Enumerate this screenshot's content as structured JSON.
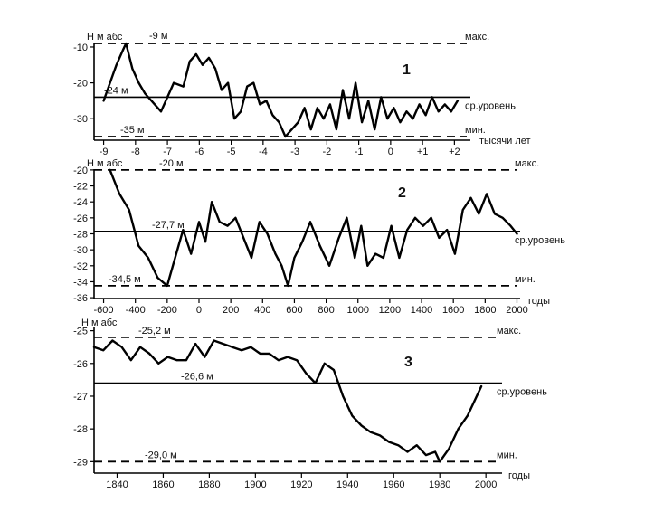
{
  "chart_data": [
    {
      "type": "line",
      "panel_number": "1",
      "ylabel": "Н м абс",
      "xlabel": "тысячи лет",
      "xlim": [
        -9.3,
        2.5
      ],
      "ylim": [
        -9,
        -36
      ],
      "yticks": [
        -10,
        -20,
        -30
      ],
      "ytick_labels": [
        "-10",
        "-20",
        "-30"
      ],
      "xticks": [
        -9,
        -8,
        -7,
        -6,
        -5,
        -4,
        -3,
        -2,
        -1,
        0,
        1,
        2
      ],
      "xtick_labels": [
        "-9",
        "-8",
        "-7",
        "-6",
        "-5",
        "-4",
        "-3",
        "-2",
        "-1",
        "0",
        "+1",
        "+2"
      ],
      "reference_lines": [
        {
          "y": -9,
          "label": "-9 м",
          "right_label": "макс.",
          "style": "dashed"
        },
        {
          "y": -24,
          "label": "-24 м",
          "right_label": "ср.уровень",
          "style": "solid"
        },
        {
          "y": -35,
          "label": "-35 м",
          "right_label": "мин.",
          "style": "dashed"
        }
      ],
      "x": [
        -9.0,
        -8.8,
        -8.6,
        -8.4,
        -8.3,
        -8.1,
        -7.9,
        -7.7,
        -7.5,
        -7.2,
        -7.0,
        -6.8,
        -6.5,
        -6.3,
        -6.1,
        -5.9,
        -5.7,
        -5.5,
        -5.3,
        -5.1,
        -4.9,
        -4.7,
        -4.5,
        -4.3,
        -4.1,
        -3.9,
        -3.7,
        -3.5,
        -3.3,
        -3.1,
        -2.9,
        -2.7,
        -2.5,
        -2.3,
        -2.1,
        -1.9,
        -1.7,
        -1.5,
        -1.3,
        -1.1,
        -0.9,
        -0.7,
        -0.5,
        -0.3,
        -0.1,
        0.1,
        0.3,
        0.5,
        0.7,
        0.9,
        1.1,
        1.3,
        1.5,
        1.7,
        1.9,
        2.1
      ],
      "y": [
        -25,
        -20,
        -15,
        -11,
        -9,
        -16,
        -20,
        -23,
        -25,
        -28,
        -24,
        -20,
        -21,
        -14,
        -12,
        -15,
        -13,
        -16,
        -22,
        -20,
        -30,
        -28,
        -21,
        -20,
        -26,
        -25,
        -29,
        -31,
        -35,
        -33,
        -31,
        -27,
        -33,
        -27,
        -30,
        -26,
        -33,
        -22,
        -30,
        -20,
        -31,
        -25,
        -33,
        -24,
        -30,
        -27,
        -31,
        -28,
        -30,
        -26,
        -29,
        -24,
        -28,
        -26,
        -28,
        -25
      ]
    },
    {
      "type": "line",
      "panel_number": "2",
      "ylabel": "Н м абс",
      "xlabel": "годы",
      "xlim": [
        -660,
        2020
      ],
      "ylim": [
        -20,
        -36
      ],
      "yticks": [
        -20,
        -22,
        -24,
        -26,
        -28,
        -30,
        -32,
        -34,
        -36
      ],
      "ytick_labels": [
        "-20",
        "-22",
        "-24",
        "-26",
        "-28",
        "-30",
        "-32",
        "-34",
        "-36"
      ],
      "xticks": [
        -600,
        -400,
        -200,
        0,
        200,
        400,
        600,
        800,
        1000,
        1200,
        1400,
        1600,
        1800,
        2000
      ],
      "xtick_labels": [
        "-600",
        "-400",
        "-200",
        "0",
        "200",
        "400",
        "600",
        "800",
        "1000",
        "1200",
        "1400",
        "1600",
        "1800",
        "2000"
      ],
      "reference_lines": [
        {
          "y": -20,
          "label": "-20 м",
          "right_label": "макс.",
          "style": "dashed"
        },
        {
          "y": -27.7,
          "label": "-27,7 м",
          "right_label": "ср.уровень",
          "style": "solid"
        },
        {
          "y": -34.5,
          "label": "-34,5 м",
          "right_label": "мин.",
          "style": "dashed"
        }
      ],
      "x": [
        -560,
        -500,
        -440,
        -380,
        -320,
        -260,
        -200,
        -150,
        -100,
        -50,
        0,
        40,
        80,
        130,
        180,
        230,
        280,
        330,
        380,
        430,
        480,
        520,
        560,
        600,
        650,
        700,
        760,
        820,
        880,
        930,
        980,
        1020,
        1060,
        1110,
        1160,
        1210,
        1260,
        1310,
        1360,
        1410,
        1460,
        1510,
        1560,
        1610,
        1660,
        1710,
        1760,
        1810,
        1860,
        1910,
        1960,
        2000
      ],
      "y": [
        -20,
        -23,
        -25,
        -29.5,
        -31,
        -33.5,
        -34.5,
        -31,
        -27.5,
        -30.5,
        -26.5,
        -29,
        -24,
        -26.5,
        -27,
        -26,
        -28.5,
        -31,
        -26.5,
        -28,
        -30.5,
        -32,
        -34.5,
        -31,
        -29,
        -26.5,
        -29.5,
        -32,
        -28.5,
        -26,
        -31,
        -27,
        -32,
        -30.5,
        -31,
        -27,
        -31,
        -27.5,
        -26,
        -27,
        -26,
        -28.5,
        -27.5,
        -30.5,
        -25,
        -23.5,
        -25.5,
        -23,
        -25.5,
        -26,
        -27,
        -28
      ]
    },
    {
      "type": "line",
      "panel_number": "3",
      "ylabel": "Н м абс",
      "xlabel": "годы",
      "xlim": [
        1830,
        2007
      ],
      "ylim": [
        -24.9,
        -29.4
      ],
      "yticks": [
        -25,
        -26,
        -27,
        -28,
        -29
      ],
      "ytick_labels": [
        "-25",
        "-26",
        "-27",
        "-28",
        "-29"
      ],
      "xticks": [
        1840,
        1860,
        1880,
        1900,
        1920,
        1940,
        1960,
        1980,
        2000
      ],
      "xtick_labels": [
        "1840",
        "1860",
        "1880",
        "1900",
        "1920",
        "1940",
        "1960",
        "1980",
        "2000"
      ],
      "reference_lines": [
        {
          "y": -25.2,
          "label": "-25,2 м",
          "right_label": "макс.",
          "style": "dashed"
        },
        {
          "y": -26.6,
          "label": "-26,6 м",
          "right_label": "ср.уровень",
          "style": "solid"
        },
        {
          "y": -29.0,
          "label": "-29,0 м",
          "right_label": "мин.",
          "style": "dashed"
        }
      ],
      "x": [
        1830,
        1834,
        1838,
        1842,
        1846,
        1850,
        1854,
        1858,
        1862,
        1866,
        1870,
        1874,
        1878,
        1882,
        1886,
        1890,
        1894,
        1898,
        1902,
        1906,
        1910,
        1914,
        1918,
        1922,
        1926,
        1930,
        1934,
        1938,
        1942,
        1946,
        1950,
        1954,
        1958,
        1962,
        1966,
        1970,
        1974,
        1978,
        1980,
        1984,
        1988,
        1992,
        1996,
        1998
      ],
      "y": [
        -25.5,
        -25.6,
        -25.3,
        -25.5,
        -25.9,
        -25.5,
        -25.7,
        -26.0,
        -25.8,
        -25.9,
        -25.9,
        -25.4,
        -25.8,
        -25.3,
        -25.4,
        -25.5,
        -25.6,
        -25.5,
        -25.7,
        -25.7,
        -25.9,
        -25.8,
        -25.9,
        -26.3,
        -26.6,
        -26.0,
        -26.2,
        -27.0,
        -27.6,
        -27.9,
        -28.1,
        -28.2,
        -28.4,
        -28.5,
        -28.7,
        -28.5,
        -28.8,
        -28.7,
        -29.0,
        -28.6,
        -28.0,
        -27.6,
        -27.0,
        -26.7
      ]
    }
  ]
}
